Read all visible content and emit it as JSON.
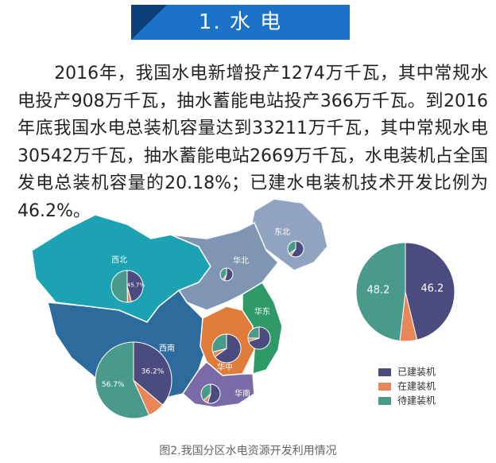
{
  "header": {
    "title": "1. 水 电"
  },
  "paragraph": "2016年，我国水电新增投产1274万千瓦，其中常规水电投产908万千瓦，抽水蓄能电站投产366万千瓦。到2016年底我国水电总装机容量达到33211万千瓦，其中常规水电30542万千瓦，抽水蓄能电站2669万千瓦，水电装机占全国发电总装机容量的20.18%；已建水电装机技术开发比例为46.2%。",
  "map": {
    "regions": [
      "西北",
      "东北",
      "华北",
      "华东",
      "华中",
      "西南",
      "华南"
    ],
    "pies": [
      {
        "values": [
          45.7,
          4,
          50.3
        ],
        "value_labels": [
          "45.7%",
          null,
          null
        ]
      },
      {
        "values": [
          60,
          5,
          35
        ]
      },
      {
        "values": [
          55,
          5,
          40
        ]
      },
      {
        "values": [
          70,
          5,
          25
        ]
      },
      {
        "values": [
          65,
          6,
          29
        ]
      },
      {
        "values": [
          36.2,
          7.1,
          56.7
        ],
        "value_labels": [
          "36.2%",
          null,
          "56.7%"
        ]
      },
      {
        "values": [
          55,
          8,
          37
        ]
      }
    ]
  },
  "chart_data": {
    "type": "pie",
    "categories": [
      "已建装机",
      "在建装机",
      "待建装机"
    ],
    "values": [
      46.2,
      5.6,
      48.2
    ],
    "colors": [
      "#4b4b7f",
      "#e8865a",
      "#4a9a8b"
    ],
    "legend": "bottom-right",
    "shown_labels": [
      0,
      2
    ]
  },
  "caption": "图2.我国分区水电资源开发利用情况"
}
